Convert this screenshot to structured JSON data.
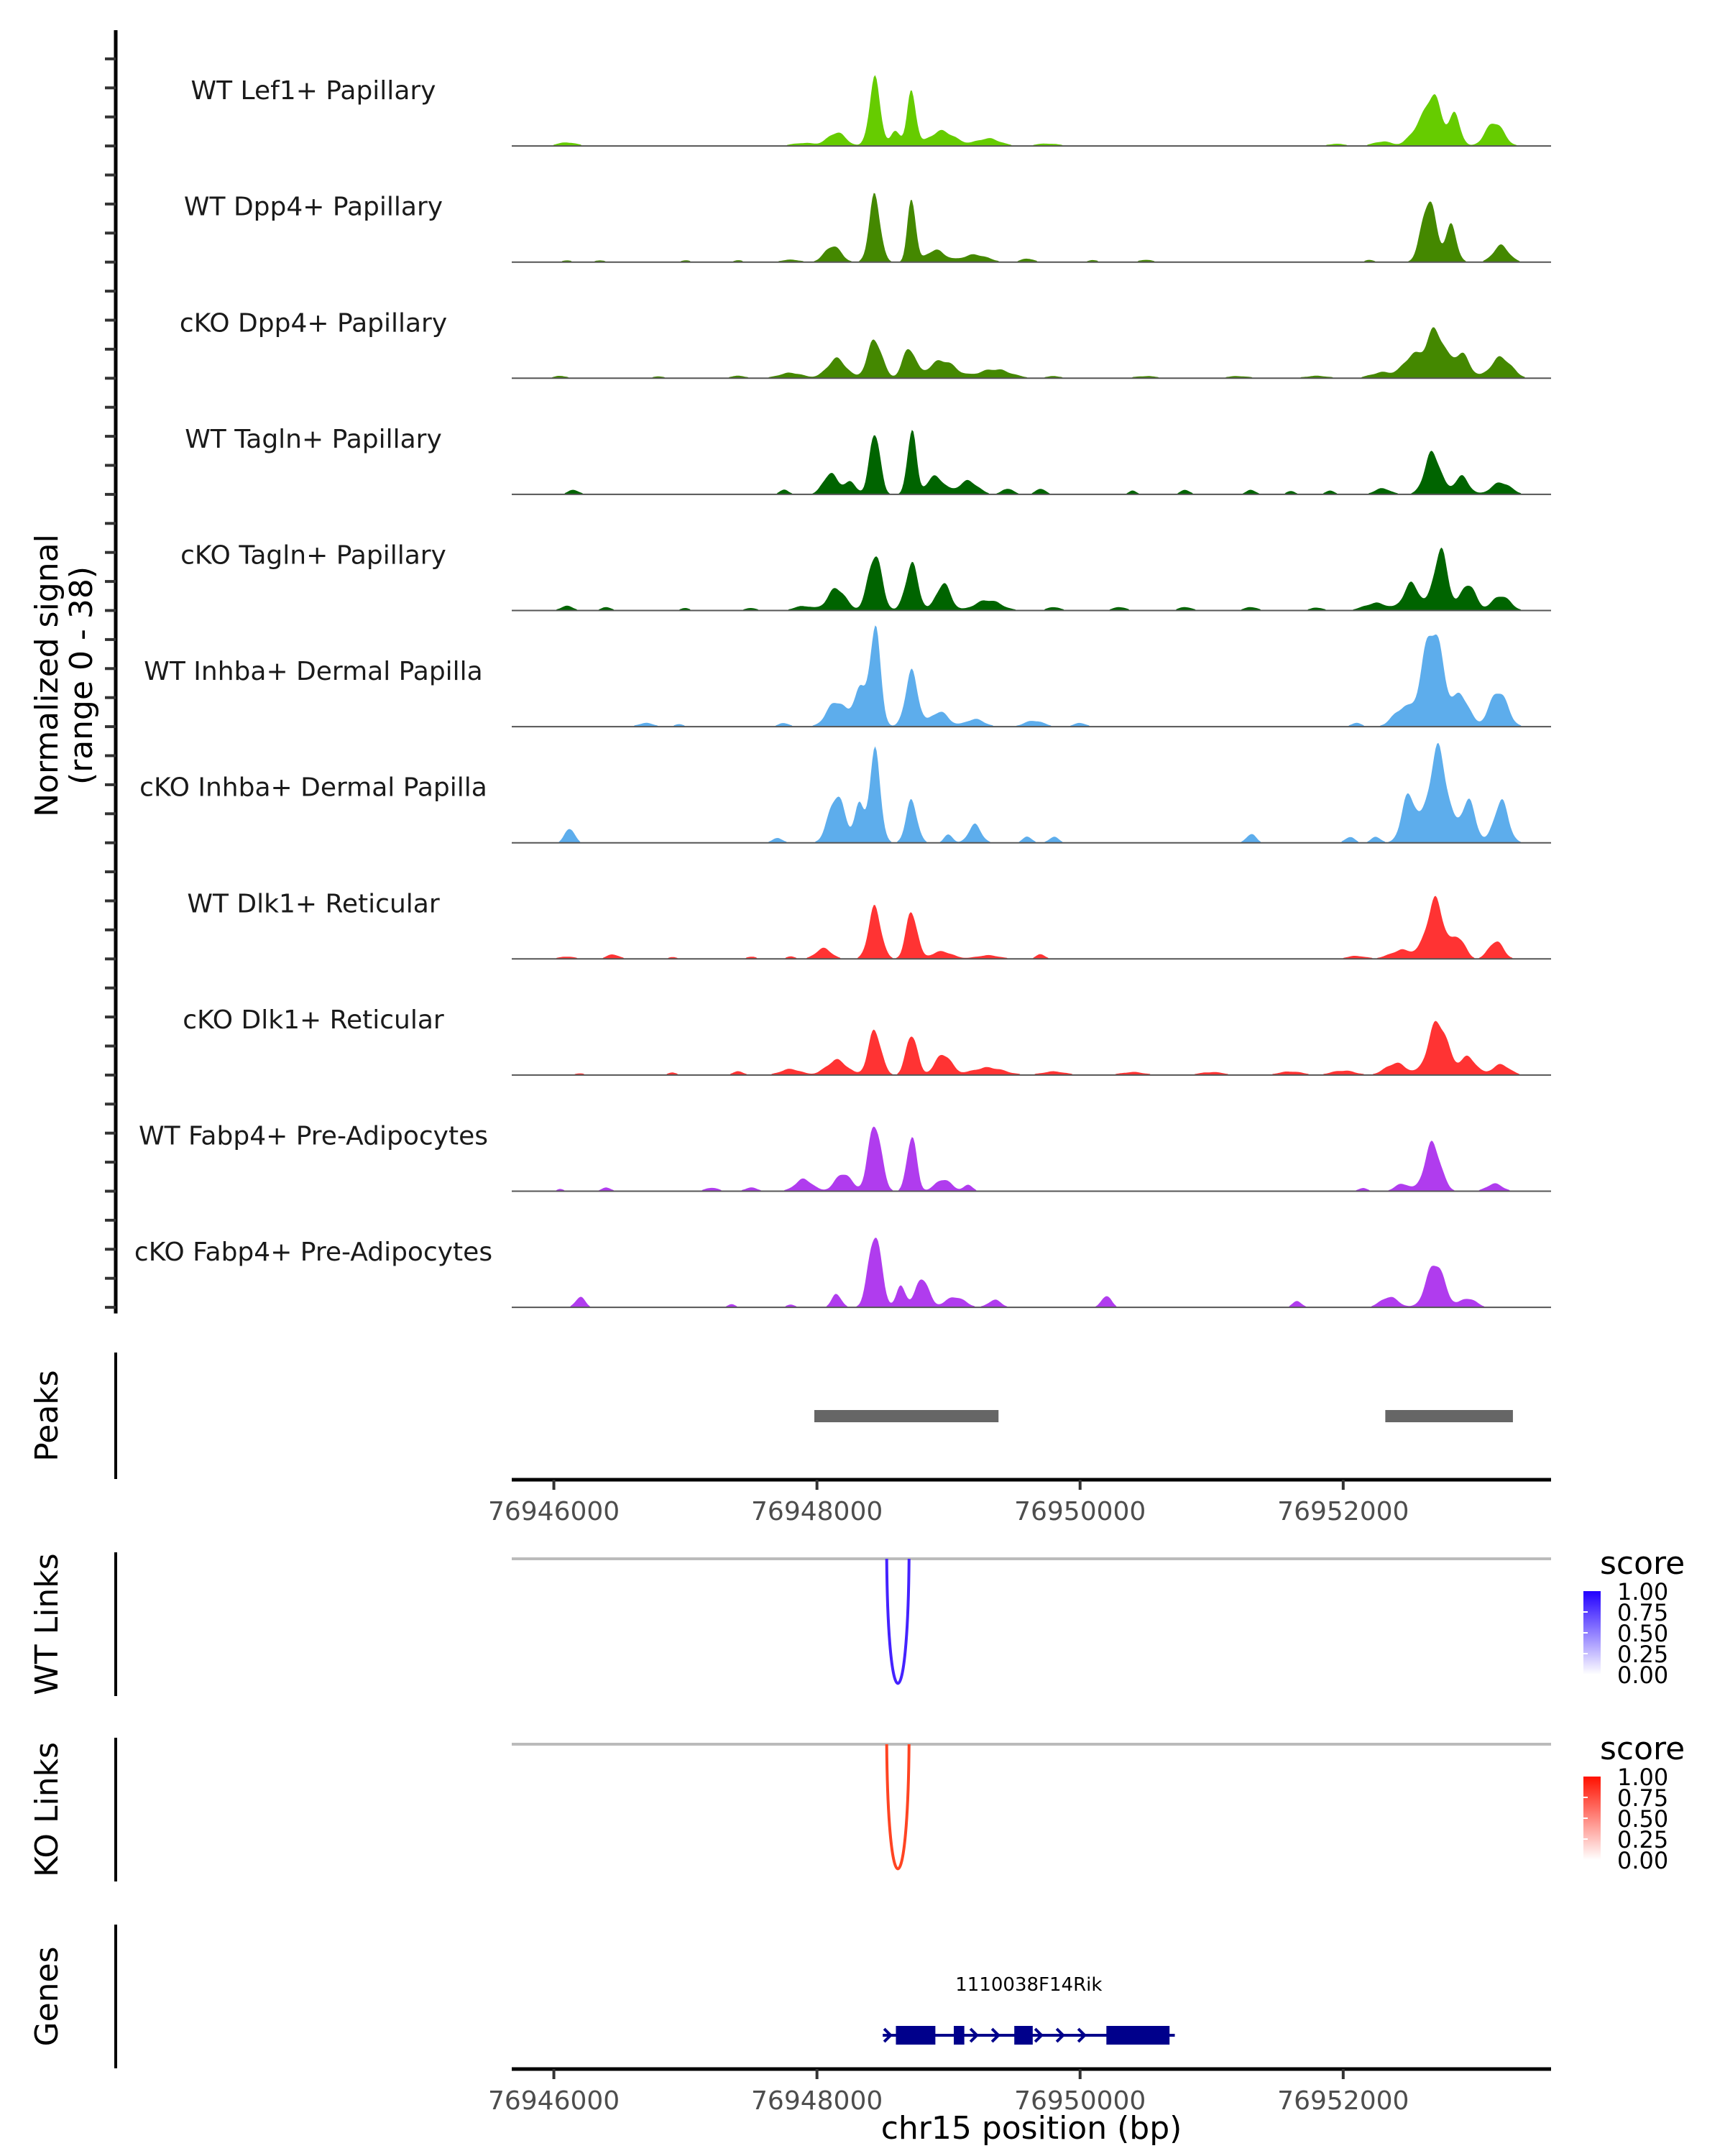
{
  "chart_data": {
    "type": "area",
    "title": "",
    "ylabel": "Normalized signal",
    "ylabel_range": "(range 0 - 38)",
    "ylim": [
      0,
      38
    ],
    "xlabel": "chr15 position (bp)",
    "xlim": [
      76945680,
      76953580
    ],
    "x_ticks": [
      76946000,
      76948000,
      76950000,
      76952000
    ],
    "x_tick_labels": [
      "76946000",
      "76948000",
      "76950000",
      "76952000"
    ],
    "data_extent": [
      76945850,
      76953380
    ],
    "tracks": [
      {
        "name": "WT Lef1+ Papillary",
        "color": "#66CC00",
        "peaks": [
          [
            76946100,
            1.2,
            120
          ],
          [
            76947900,
            1.0,
            150
          ],
          [
            76948150,
            4.5,
            110
          ],
          [
            76948440,
            22,
            70
          ],
          [
            76948600,
            5,
            60
          ],
          [
            76948720,
            18,
            55
          ],
          [
            76948950,
            5,
            160
          ],
          [
            76949300,
            2.5,
            150
          ],
          [
            76949750,
            0.8,
            150
          ],
          [
            76951950,
            0.7,
            120
          ],
          [
            76952300,
            1.5,
            120
          ],
          [
            76952540,
            4,
            90
          ],
          [
            76952680,
            17,
            110
          ],
          [
            76952850,
            10,
            70
          ],
          [
            76953150,
            8,
            110
          ]
        ]
      },
      {
        "name": "WT Dpp4+ Papillary",
        "color": "#448800",
        "peaks": [
          [
            76946100,
            0.6,
            60
          ],
          [
            76946350,
            0.6,
            60
          ],
          [
            76947000,
            0.6,
            60
          ],
          [
            76947400,
            0.6,
            60
          ],
          [
            76947800,
            0.8,
            120
          ],
          [
            76948120,
            5.5,
            100
          ],
          [
            76948440,
            22,
            70
          ],
          [
            76948720,
            22,
            50
          ],
          [
            76948900,
            4,
            120
          ],
          [
            76949200,
            2.5,
            160
          ],
          [
            76949600,
            1.2,
            80
          ],
          [
            76950100,
            0.7,
            60
          ],
          [
            76950500,
            0.8,
            80
          ],
          [
            76952200,
            0.7,
            60
          ],
          [
            76952650,
            21,
            90
          ],
          [
            76952820,
            12,
            70
          ],
          [
            76953200,
            5.5,
            100
          ]
        ]
      },
      {
        "name": "cKO Dpp4+ Papillary",
        "color": "#448800",
        "peaks": [
          [
            76946050,
            0.8,
            80
          ],
          [
            76946800,
            0.6,
            80
          ],
          [
            76947400,
            0.8,
            100
          ],
          [
            76947800,
            1.8,
            150
          ],
          [
            76948150,
            6.5,
            120
          ],
          [
            76948440,
            13,
            90
          ],
          [
            76948700,
            10,
            80
          ],
          [
            76948950,
            6,
            160
          ],
          [
            76949350,
            3,
            200
          ],
          [
            76949800,
            0.7,
            100
          ],
          [
            76950500,
            0.7,
            150
          ],
          [
            76951200,
            0.7,
            150
          ],
          [
            76951800,
            0.8,
            150
          ],
          [
            76952300,
            2,
            150
          ],
          [
            76952520,
            7,
            110
          ],
          [
            76952700,
            16,
            120
          ],
          [
            76952900,
            8,
            100
          ],
          [
            76953200,
            7,
            130
          ]
        ]
      },
      {
        "name": "WT Tagln+ Papillary",
        "color": "#006400",
        "peaks": [
          [
            76946150,
            1.5,
            70
          ],
          [
            76947750,
            1.5,
            60
          ],
          [
            76948100,
            7,
            90
          ],
          [
            76948250,
            4,
            80
          ],
          [
            76948440,
            21.5,
            65
          ],
          [
            76948720,
            22,
            55
          ],
          [
            76948900,
            6,
            110
          ],
          [
            76949150,
            4.5,
            120
          ],
          [
            76949450,
            2,
            70
          ],
          [
            76949700,
            2,
            60
          ],
          [
            76950400,
            1.2,
            50
          ],
          [
            76950800,
            1.5,
            60
          ],
          [
            76951300,
            1.5,
            60
          ],
          [
            76951600,
            1.2,
            50
          ],
          [
            76951900,
            1.2,
            60
          ],
          [
            76952300,
            2,
            100
          ],
          [
            76952680,
            14,
            100
          ],
          [
            76952900,
            6,
            90
          ],
          [
            76953200,
            4,
            120
          ]
        ]
      },
      {
        "name": "cKO Tagln+ Papillary",
        "color": "#006400",
        "peaks": [
          [
            76946100,
            1.5,
            80
          ],
          [
            76946400,
            1.2,
            60
          ],
          [
            76947000,
            0.8,
            60
          ],
          [
            76947500,
            0.8,
            80
          ],
          [
            76947900,
            1.5,
            120
          ],
          [
            76948150,
            7.5,
            110
          ],
          [
            76948440,
            19,
            85
          ],
          [
            76948720,
            15.5,
            80
          ],
          [
            76948960,
            9,
            90
          ],
          [
            76949300,
            3.5,
            160
          ],
          [
            76949800,
            1.2,
            80
          ],
          [
            76950300,
            1.2,
            80
          ],
          [
            76950800,
            1.2,
            80
          ],
          [
            76951300,
            1.2,
            80
          ],
          [
            76951800,
            1.0,
            80
          ],
          [
            76952250,
            2.5,
            150
          ],
          [
            76952520,
            9,
            100
          ],
          [
            76952740,
            20,
            90
          ],
          [
            76952950,
            9,
            90
          ],
          [
            76953200,
            5,
            110
          ]
        ]
      },
      {
        "name": "WT Inhba+ Dermal Papilla",
        "color": "#5DADEC",
        "peaks": [
          [
            76946700,
            1.2,
            100
          ],
          [
            76946950,
            0.8,
            60
          ],
          [
            76947750,
            1.2,
            70
          ],
          [
            76948150,
            8.5,
            120
          ],
          [
            76948320,
            12,
            70
          ],
          [
            76948440,
            33,
            70
          ],
          [
            76948720,
            18,
            80
          ],
          [
            76948930,
            5,
            110
          ],
          [
            76949200,
            2.5,
            120
          ],
          [
            76949650,
            2,
            120
          ],
          [
            76950000,
            1.2,
            80
          ],
          [
            76952100,
            1.2,
            70
          ],
          [
            76952450,
            6,
            120
          ],
          [
            76952680,
            33,
            130
          ],
          [
            76952900,
            10,
            100
          ],
          [
            76953180,
            12,
            110
          ]
        ]
      },
      {
        "name": "cKO Inhba+ Dermal Papilla",
        "color": "#5DADEC",
        "peaks": [
          [
            76946120,
            5,
            60
          ],
          [
            76947700,
            1.5,
            70
          ],
          [
            76948150,
            16,
            100
          ],
          [
            76948320,
            12,
            60
          ],
          [
            76948440,
            30,
            70
          ],
          [
            76948720,
            14,
            70
          ],
          [
            76949000,
            3,
            50
          ],
          [
            76949200,
            6,
            80
          ],
          [
            76949600,
            2,
            60
          ],
          [
            76949800,
            2,
            60
          ],
          [
            76951300,
            3,
            60
          ],
          [
            76952050,
            2,
            60
          ],
          [
            76952250,
            2,
            60
          ],
          [
            76952500,
            16,
            90
          ],
          [
            76952720,
            31,
            120
          ],
          [
            76952950,
            14,
            90
          ],
          [
            76953200,
            14,
            90
          ]
        ]
      },
      {
        "name": "WT Dlk1+ Reticular",
        "color": "#FF3333",
        "peaks": [
          [
            76946100,
            0.8,
            100
          ],
          [
            76946450,
            1.5,
            80
          ],
          [
            76946900,
            0.6,
            60
          ],
          [
            76947500,
            0.8,
            60
          ],
          [
            76947800,
            0.8,
            60
          ],
          [
            76948050,
            3.5,
            100
          ],
          [
            76948440,
            17,
            80
          ],
          [
            76948720,
            16,
            70
          ],
          [
            76948950,
            2.5,
            130
          ],
          [
            76949300,
            1.2,
            150
          ],
          [
            76949700,
            1.5,
            60
          ],
          [
            76952100,
            1,
            120
          ],
          [
            76952450,
            3,
            150
          ],
          [
            76952700,
            19.5,
            110
          ],
          [
            76952880,
            7,
            80
          ],
          [
            76953160,
            6,
            90
          ]
        ]
      },
      {
        "name": "cKO Dlk1+ Reticular",
        "color": "#FF3333",
        "peaks": [
          [
            76946200,
            0.6,
            60
          ],
          [
            76946900,
            0.8,
            60
          ],
          [
            76947400,
            1.2,
            70
          ],
          [
            76947800,
            2,
            130
          ],
          [
            76948150,
            5,
            130
          ],
          [
            76948440,
            15,
            80
          ],
          [
            76948720,
            14,
            70
          ],
          [
            76948960,
            7,
            100
          ],
          [
            76949300,
            2.5,
            200
          ],
          [
            76949800,
            1.2,
            150
          ],
          [
            76950400,
            1,
            150
          ],
          [
            76951000,
            1,
            150
          ],
          [
            76951600,
            1.2,
            150
          ],
          [
            76952000,
            1.5,
            150
          ],
          [
            76952400,
            4,
            130
          ],
          [
            76952720,
            18,
            120
          ],
          [
            76952950,
            6,
            100
          ],
          [
            76953200,
            3.5,
            110
          ]
        ]
      },
      {
        "name": "WT Fabp4+ Pre-Adipocytes",
        "color": "#B03CEE",
        "peaks": [
          [
            76946050,
            0.8,
            40
          ],
          [
            76946400,
            1.2,
            60
          ],
          [
            76947200,
            1.2,
            80
          ],
          [
            76947500,
            1.2,
            80
          ],
          [
            76947900,
            4,
            110
          ],
          [
            76948200,
            6,
            100
          ],
          [
            76948440,
            23,
            80
          ],
          [
            76948720,
            19,
            60
          ],
          [
            76948960,
            4,
            100
          ],
          [
            76949150,
            2,
            60
          ],
          [
            76952150,
            1,
            60
          ],
          [
            76952450,
            2.5,
            90
          ],
          [
            76952680,
            16,
            100
          ],
          [
            76953150,
            2.5,
            100
          ]
        ]
      },
      {
        "name": "cKO Fabp4+ Pre-Adipocytes",
        "color": "#B03CEE",
        "peaks": [
          [
            76946200,
            3.5,
            60
          ],
          [
            76947350,
            1,
            50
          ],
          [
            76947800,
            1,
            50
          ],
          [
            76948150,
            4.5,
            60
          ],
          [
            76948440,
            25,
            80
          ],
          [
            76948640,
            7,
            60
          ],
          [
            76948800,
            10,
            80
          ],
          [
            76949050,
            3.5,
            120
          ],
          [
            76949350,
            2.5,
            80
          ],
          [
            76950200,
            4,
            60
          ],
          [
            76951650,
            2,
            60
          ],
          [
            76952350,
            3.5,
            110
          ],
          [
            76952700,
            15,
            110
          ],
          [
            76952950,
            3,
            100
          ]
        ]
      }
    ],
    "peaks_track": {
      "label": "Peaks",
      "regions": [
        [
          76947980,
          76949380
        ],
        [
          76952320,
          76953290
        ]
      ],
      "color": "#666666"
    },
    "links_tracks": [
      {
        "label": "WT Links",
        "color": "#4422FF",
        "links": [
          {
            "start": 76948530,
            "end": 76948700,
            "score": 0.85
          }
        ],
        "legend": {
          "title": "score",
          "ticks": [
            "1.00",
            "0.75",
            "0.50",
            "0.25",
            "0.00"
          ],
          "low": "#FFFFFF",
          "high": "#2200FF"
        }
      },
      {
        "label": "KO Links",
        "color": "#FF4422",
        "links": [
          {
            "start": 76948530,
            "end": 76948700,
            "score": 0.85
          }
        ],
        "legend": {
          "title": "score",
          "ticks": [
            "1.00",
            "0.75",
            "0.50",
            "0.25",
            "0.00"
          ],
          "low": "#FFFFFF",
          "high": "#FF1100"
        }
      }
    ],
    "genes_track": {
      "label": "Genes",
      "color": "#00008B",
      "genes": [
        {
          "name": "1110038F14Rik",
          "start": 76948500,
          "end": 76950720,
          "strand": "+",
          "exons": [
            [
              76948600,
              76948900
            ],
            [
              76949040,
              76949120
            ],
            [
              76949500,
              76949640
            ],
            [
              76950200,
              76950680
            ]
          ]
        }
      ]
    }
  }
}
